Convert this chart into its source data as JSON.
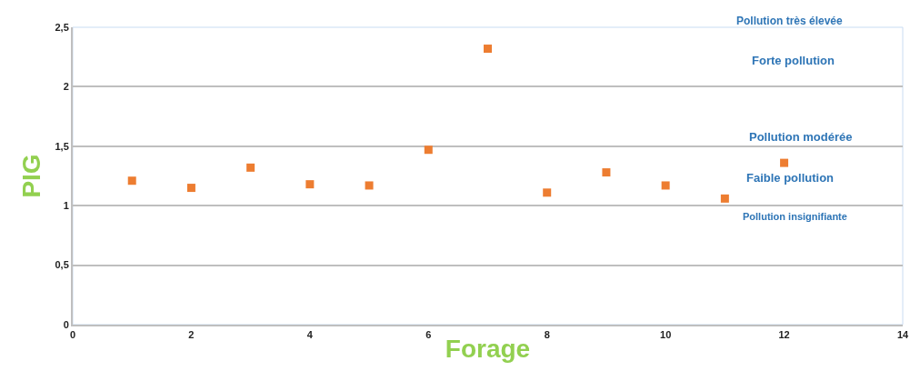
{
  "chart_data": {
    "type": "scatter",
    "xlabel": "Forage",
    "ylabel": "PIG",
    "x": [
      1,
      2,
      3,
      4,
      5,
      6,
      7,
      8,
      9,
      10,
      11,
      12
    ],
    "series": [
      {
        "color": "#ed7d31",
        "values": [
          1.21,
          1.15,
          1.32,
          1.18,
          1.17,
          1.47,
          2.32,
          1.11,
          1.28,
          1.17,
          1.06,
          1.36
        ]
      }
    ],
    "marker": "square",
    "xlim": [
      0,
      14
    ],
    "xticks": [
      0,
      2,
      4,
      6,
      8,
      10,
      12,
      14
    ],
    "ylim": [
      0,
      2.5
    ],
    "yticks": [
      0,
      {
        "value": 0.5,
        "label": "0,5"
      },
      1,
      {
        "value": 1.5,
        "label": "1,5"
      },
      2,
      {
        "value": 2.5,
        "label": "2,5"
      }
    ],
    "grid": "y",
    "annotations": [
      "Pollution très élevée",
      "Forte pollution",
      "Pollution modérée",
      "Faible pollution",
      "Pollution insignifiante"
    ]
  }
}
